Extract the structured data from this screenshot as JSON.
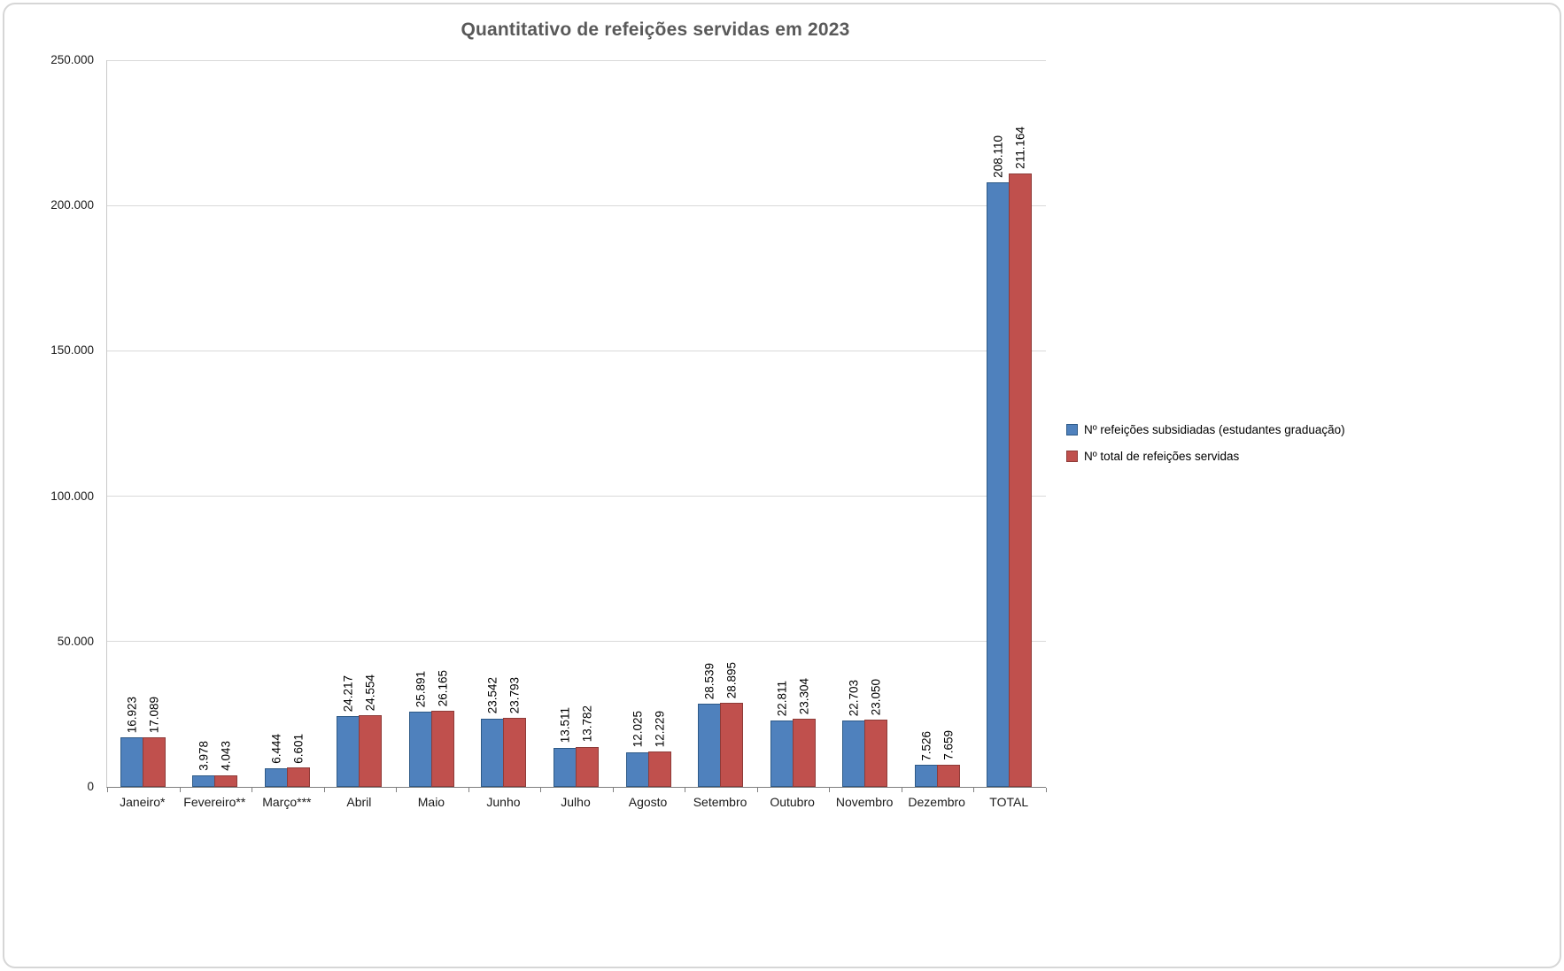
{
  "chart_data": {
    "type": "bar",
    "title": "Quantitativo de refeições servidas em 2023",
    "categories": [
      "Janeiro*",
      "Fevereiro**",
      "Março***",
      "Abril",
      "Maio",
      "Junho",
      "Julho",
      "Agosto",
      "Setembro",
      "Outubro",
      "Novembro",
      "Dezembro",
      "TOTAL"
    ],
    "series": [
      {
        "name": "Nº refeições subsidiadas (estudantes graduação)",
        "color": "#4F81BD",
        "border_color": "#2E5A87",
        "values": [
          16923,
          3978,
          6444,
          24217,
          25891,
          23542,
          13511,
          12025,
          28539,
          22811,
          22703,
          7526,
          208110
        ],
        "value_labels": [
          "16.923",
          "3.978",
          "6.444",
          "24.217",
          "25.891",
          "23.542",
          "13.511",
          "12.025",
          "28.539",
          "22.811",
          "22.703",
          "7.526",
          "208.110"
        ]
      },
      {
        "name": "Nº total de refeições servidas",
        "color": "#C0504D",
        "border_color": "#8E3B38",
        "values": [
          17089,
          4043,
          6601,
          24554,
          26165,
          23793,
          13782,
          12229,
          28895,
          23304,
          23050,
          7659,
          211164
        ],
        "value_labels": [
          "17.089",
          "4.043",
          "6.601",
          "24.554",
          "26.165",
          "23.793",
          "13.782",
          "12.229",
          "28.895",
          "23.304",
          "23.050",
          "7.659",
          "211.164"
        ]
      }
    ],
    "y_axis": {
      "min": 0,
      "max": 250000,
      "step": 50000,
      "tick_labels": [
        "0",
        "50.000",
        "100.000",
        "150.000",
        "200.000",
        "250.000"
      ]
    },
    "grid": true,
    "legend_position": "right"
  }
}
